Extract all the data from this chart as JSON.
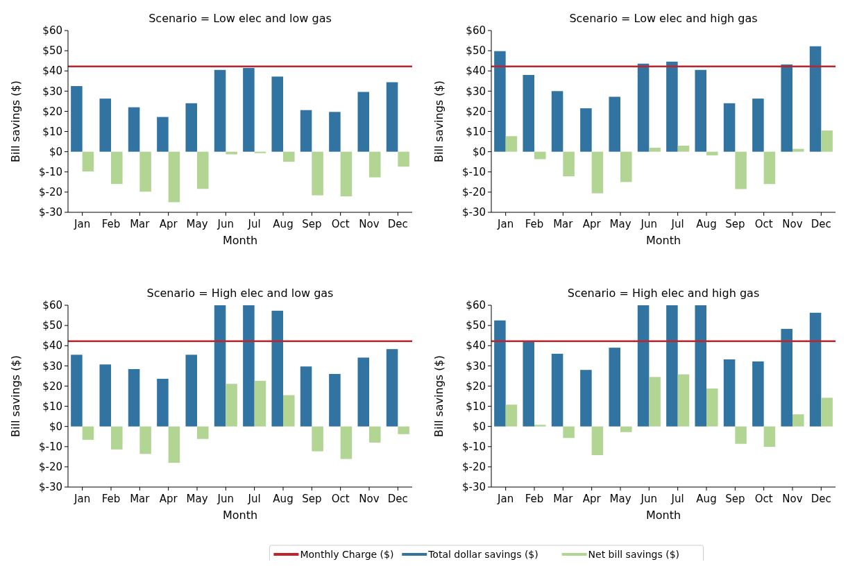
{
  "chart_data": [
    {
      "type": "bar",
      "title": "Scenario = Low elec and low gas",
      "xlabel": "Month",
      "ylabel": "Bill savings ($)",
      "categories": [
        "Jan",
        "Feb",
        "Mar",
        "Apr",
        "May",
        "Jun",
        "Jul",
        "Aug",
        "Sep",
        "Oct",
        "Nov",
        "Dec"
      ],
      "series": [
        {
          "name": "Total dollar savings ($)",
          "color": "#3274a1",
          "values": [
            32.5,
            26.3,
            22,
            17.2,
            24,
            40.5,
            41.5,
            37.2,
            20.6,
            19.7,
            29.6,
            34.4
          ]
        },
        {
          "name": "Net bill savings ($)",
          "color": "#b2d593",
          "values": [
            -9.8,
            -16,
            -19.8,
            -25,
            -18.4,
            -1.3,
            -0.7,
            -5,
            -21.6,
            -22.1,
            -12.7,
            -7.4
          ]
        }
      ],
      "ref_lines": [
        {
          "axis": "y",
          "value": 42.2,
          "label": "Monthly Charge ($)",
          "color": "#c0232a"
        }
      ],
      "ylim": [
        -30,
        60
      ],
      "yticks": [
        {
          "value": -30,
          "label": "$-30"
        },
        {
          "value": -20,
          "label": "$-20"
        },
        {
          "value": -10,
          "label": "$-10"
        },
        {
          "value": 0,
          "label": "$0"
        },
        {
          "value": 10,
          "label": "$10"
        },
        {
          "value": 20,
          "label": "$20"
        },
        {
          "value": 30,
          "label": "$30"
        },
        {
          "value": 40,
          "label": "$40"
        },
        {
          "value": 50,
          "label": "$50"
        },
        {
          "value": 60,
          "label": "$60"
        }
      ],
      "legend": "bottom"
    },
    {
      "type": "bar",
      "title": "Scenario = Low elec and high gas",
      "xlabel": "Month",
      "ylabel": "Bill savings ($)",
      "categories": [
        "Jan",
        "Feb",
        "Mar",
        "Apr",
        "May",
        "Jun",
        "Jul",
        "Aug",
        "Sep",
        "Oct",
        "Nov",
        "Dec"
      ],
      "series": [
        {
          "color": "#3274a1",
          "values": [
            49.8,
            38,
            30,
            21.5,
            27.2,
            43.6,
            44.6,
            40.5,
            24,
            26.3,
            43.2,
            52.2
          ]
        },
        {
          "color": "#b2d593",
          "values": [
            7.7,
            -3.7,
            -12.2,
            -20.6,
            -15,
            2,
            3,
            -1.8,
            -18.5,
            -16,
            1.4,
            10.5
          ]
        }
      ],
      "ref_lines": [
        {
          "axis": "y",
          "value": 42.2,
          "color": "#c0232a"
        }
      ],
      "ylim": [
        -30,
        60
      ],
      "yticks": [
        {
          "value": -30,
          "label": "$-30"
        },
        {
          "value": -20,
          "label": "$-20"
        },
        {
          "value": -10,
          "label": "$-10"
        },
        {
          "value": 0,
          "label": "$0"
        },
        {
          "value": 10,
          "label": "$10"
        },
        {
          "value": 20,
          "label": "$20"
        },
        {
          "value": 30,
          "label": "$30"
        },
        {
          "value": 40,
          "label": "$40"
        },
        {
          "value": 50,
          "label": "$50"
        },
        {
          "value": 60,
          "label": "$60"
        }
      ]
    },
    {
      "type": "bar",
      "title": "Scenario = High elec and low gas",
      "xlabel": "Month",
      "ylabel": "Bill savings ($)",
      "categories": [
        "Jan",
        "Feb",
        "Mar",
        "Apr",
        "May",
        "Jun",
        "Jul",
        "Aug",
        "Sep",
        "Oct",
        "Nov",
        "Dec"
      ],
      "series": [
        {
          "color": "#3274a1",
          "values": [
            35.5,
            30.7,
            28.4,
            23.6,
            35.5,
            60,
            60,
            57.3,
            29.7,
            26,
            34.1,
            38.3
          ]
        },
        {
          "color": "#b2d593",
          "values": [
            -6.6,
            -11.4,
            -13.6,
            -18,
            -6.2,
            21.1,
            22.6,
            15.5,
            -12.3,
            -16.1,
            -8,
            -3.8
          ]
        }
      ],
      "ref_lines": [
        {
          "axis": "y",
          "value": 42.2,
          "color": "#c0232a"
        }
      ],
      "ylim": [
        -30,
        60
      ],
      "yticks": [
        {
          "value": -30,
          "label": "$-30"
        },
        {
          "value": -20,
          "label": "$-20"
        },
        {
          "value": -10,
          "label": "$-10"
        },
        {
          "value": 0,
          "label": "$0"
        },
        {
          "value": 10,
          "label": "$10"
        },
        {
          "value": 20,
          "label": "$20"
        },
        {
          "value": 30,
          "label": "$30"
        },
        {
          "value": 40,
          "label": "$40"
        },
        {
          "value": 50,
          "label": "$50"
        },
        {
          "value": 60,
          "label": "$60"
        }
      ]
    },
    {
      "type": "bar",
      "title": "Scenario = High elec and high gas",
      "xlabel": "Month",
      "ylabel": "Bill savings ($)",
      "categories": [
        "Jan",
        "Feb",
        "Mar",
        "Apr",
        "May",
        "Jun",
        "Jul",
        "Aug",
        "Sep",
        "Oct",
        "Nov",
        "Dec"
      ],
      "series": [
        {
          "color": "#3274a1",
          "values": [
            52.5,
            42.3,
            36,
            28,
            39,
            60,
            60,
            60,
            33.2,
            32.2,
            48.3,
            56.3
          ]
        },
        {
          "color": "#b2d593",
          "values": [
            10.8,
            0.8,
            -5.7,
            -14.2,
            -2.8,
            24.5,
            25.8,
            18.8,
            -8.6,
            -10.1,
            6,
            14.2
          ]
        }
      ],
      "ref_lines": [
        {
          "axis": "y",
          "value": 42.2,
          "color": "#c0232a"
        }
      ],
      "ylim": [
        -30,
        60
      ],
      "yticks": [
        {
          "value": -30,
          "label": "$-30"
        },
        {
          "value": -20,
          "label": "$-20"
        },
        {
          "value": -10,
          "label": "$-10"
        },
        {
          "value": 0,
          "label": "$0"
        },
        {
          "value": 10,
          "label": "$10"
        },
        {
          "value": 20,
          "label": "$20"
        },
        {
          "value": 30,
          "label": "$30"
        },
        {
          "value": 40,
          "label": "$40"
        },
        {
          "value": 50,
          "label": "$50"
        },
        {
          "value": 60,
          "label": "$60"
        }
      ]
    }
  ]
}
